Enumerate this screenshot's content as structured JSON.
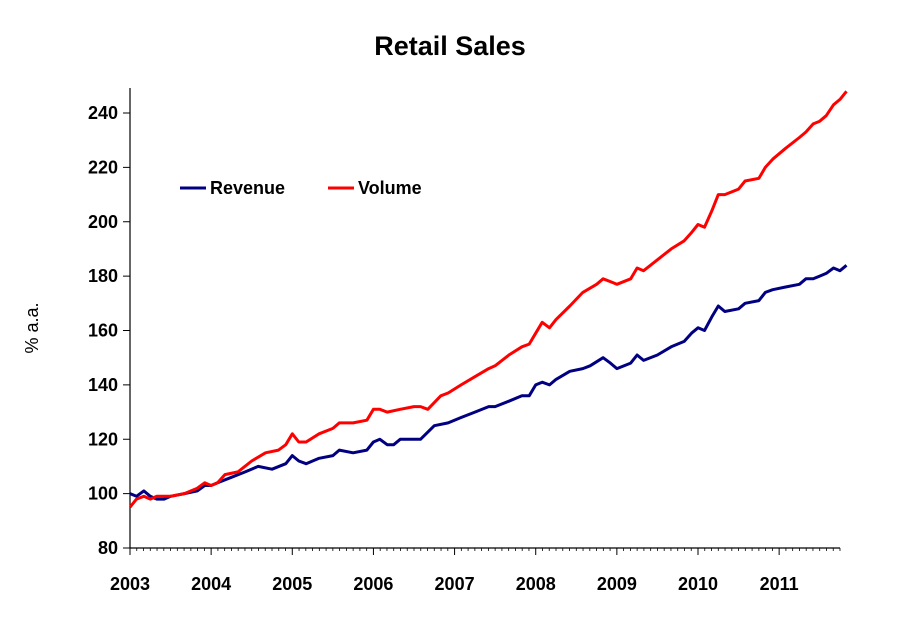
{
  "chart_data": {
    "type": "line",
    "title": "Retail Sales",
    "xlabel": "",
    "ylabel": "% a.a.",
    "xlim": [
      2003,
      2011.75
    ],
    "ylim": [
      80,
      250
    ],
    "x_ticks": [
      "2003",
      "2004",
      "2005",
      "2006",
      "2007",
      "2008",
      "2009",
      "2010",
      "2011"
    ],
    "y_ticks": [
      80,
      100,
      120,
      140,
      160,
      180,
      200,
      220,
      240
    ],
    "grid": false,
    "legend": "upper-left",
    "colors": {
      "Revenue": "#000080",
      "Volume": "#ff0000"
    },
    "series": [
      {
        "name": "Revenue",
        "color": "#000080",
        "points": [
          [
            2003.0,
            100
          ],
          [
            2003.08,
            99
          ],
          [
            2003.17,
            101
          ],
          [
            2003.25,
            99
          ],
          [
            2003.33,
            98
          ],
          [
            2003.42,
            98
          ],
          [
            2003.5,
            99
          ],
          [
            2003.67,
            100
          ],
          [
            2003.83,
            101
          ],
          [
            2003.92,
            103
          ],
          [
            2004.0,
            103
          ],
          [
            2004.08,
            104
          ],
          [
            2004.25,
            106
          ],
          [
            2004.42,
            108
          ],
          [
            2004.58,
            110
          ],
          [
            2004.75,
            109
          ],
          [
            2004.92,
            111
          ],
          [
            2005.0,
            114
          ],
          [
            2005.08,
            112
          ],
          [
            2005.17,
            111
          ],
          [
            2005.33,
            113
          ],
          [
            2005.5,
            114
          ],
          [
            2005.58,
            116
          ],
          [
            2005.75,
            115
          ],
          [
            2005.92,
            116
          ],
          [
            2006.0,
            119
          ],
          [
            2006.08,
            120
          ],
          [
            2006.17,
            118
          ],
          [
            2006.25,
            118
          ],
          [
            2006.33,
            120
          ],
          [
            2006.5,
            120
          ],
          [
            2006.58,
            120
          ],
          [
            2006.75,
            125
          ],
          [
            2006.92,
            126
          ],
          [
            2007.08,
            128
          ],
          [
            2007.25,
            130
          ],
          [
            2007.42,
            132
          ],
          [
            2007.5,
            132
          ],
          [
            2007.67,
            134
          ],
          [
            2007.83,
            136
          ],
          [
            2007.92,
            136
          ],
          [
            2008.0,
            140
          ],
          [
            2008.08,
            141
          ],
          [
            2008.17,
            140
          ],
          [
            2008.25,
            142
          ],
          [
            2008.42,
            145
          ],
          [
            2008.58,
            146
          ],
          [
            2008.67,
            147
          ],
          [
            2008.83,
            150
          ],
          [
            2008.92,
            148
          ],
          [
            2009.0,
            146
          ],
          [
            2009.17,
            148
          ],
          [
            2009.25,
            151
          ],
          [
            2009.33,
            149
          ],
          [
            2009.5,
            151
          ],
          [
            2009.67,
            154
          ],
          [
            2009.83,
            156
          ],
          [
            2009.92,
            159
          ],
          [
            2010.0,
            161
          ],
          [
            2010.08,
            160
          ],
          [
            2010.17,
            165
          ],
          [
            2010.25,
            169
          ],
          [
            2010.33,
            167
          ],
          [
            2010.5,
            168
          ],
          [
            2010.58,
            170
          ],
          [
            2010.75,
            171
          ],
          [
            2010.83,
            174
          ],
          [
            2010.92,
            175
          ],
          [
            2011.08,
            176
          ],
          [
            2011.25,
            177
          ],
          [
            2011.33,
            179
          ],
          [
            2011.42,
            179
          ],
          [
            2011.5,
            180
          ],
          [
            2011.58,
            181
          ],
          [
            2011.67,
            183
          ],
          [
            2011.75,
            182
          ],
          [
            2011.83,
            184
          ]
        ]
      },
      {
        "name": "Volume",
        "color": "#ff0000",
        "points": [
          [
            2003.0,
            95
          ],
          [
            2003.08,
            98
          ],
          [
            2003.17,
            99
          ],
          [
            2003.25,
            98
          ],
          [
            2003.33,
            99
          ],
          [
            2003.5,
            99
          ],
          [
            2003.67,
            100
          ],
          [
            2003.83,
            102
          ],
          [
            2003.92,
            104
          ],
          [
            2004.0,
            103
          ],
          [
            2004.08,
            104
          ],
          [
            2004.17,
            107
          ],
          [
            2004.33,
            108
          ],
          [
            2004.5,
            112
          ],
          [
            2004.67,
            115
          ],
          [
            2004.83,
            116
          ],
          [
            2004.92,
            118
          ],
          [
            2005.0,
            122
          ],
          [
            2005.08,
            119
          ],
          [
            2005.17,
            119
          ],
          [
            2005.33,
            122
          ],
          [
            2005.5,
            124
          ],
          [
            2005.58,
            126
          ],
          [
            2005.75,
            126
          ],
          [
            2005.92,
            127
          ],
          [
            2006.0,
            131
          ],
          [
            2006.08,
            131
          ],
          [
            2006.17,
            130
          ],
          [
            2006.33,
            131
          ],
          [
            2006.5,
            132
          ],
          [
            2006.58,
            132
          ],
          [
            2006.67,
            131
          ],
          [
            2006.83,
            136
          ],
          [
            2006.92,
            137
          ],
          [
            2007.08,
            140
          ],
          [
            2007.25,
            143
          ],
          [
            2007.42,
            146
          ],
          [
            2007.5,
            147
          ],
          [
            2007.67,
            151
          ],
          [
            2007.83,
            154
          ],
          [
            2007.92,
            155
          ],
          [
            2008.0,
            159
          ],
          [
            2008.08,
            163
          ],
          [
            2008.17,
            161
          ],
          [
            2008.25,
            164
          ],
          [
            2008.42,
            169
          ],
          [
            2008.58,
            174
          ],
          [
            2008.75,
            177
          ],
          [
            2008.83,
            179
          ],
          [
            2008.92,
            178
          ],
          [
            2009.0,
            177
          ],
          [
            2009.17,
            179
          ],
          [
            2009.25,
            183
          ],
          [
            2009.33,
            182
          ],
          [
            2009.5,
            186
          ],
          [
            2009.67,
            190
          ],
          [
            2009.83,
            193
          ],
          [
            2009.92,
            196
          ],
          [
            2010.0,
            199
          ],
          [
            2010.08,
            198
          ],
          [
            2010.17,
            204
          ],
          [
            2010.25,
            210
          ],
          [
            2010.33,
            210
          ],
          [
            2010.5,
            212
          ],
          [
            2010.58,
            215
          ],
          [
            2010.75,
            216
          ],
          [
            2010.83,
            220
          ],
          [
            2010.92,
            223
          ],
          [
            2011.08,
            227
          ],
          [
            2011.25,
            231
          ],
          [
            2011.33,
            233
          ],
          [
            2011.42,
            236
          ],
          [
            2011.5,
            237
          ],
          [
            2011.58,
            239
          ],
          [
            2011.67,
            243
          ],
          [
            2011.75,
            245
          ],
          [
            2011.83,
            248
          ]
        ]
      }
    ]
  }
}
